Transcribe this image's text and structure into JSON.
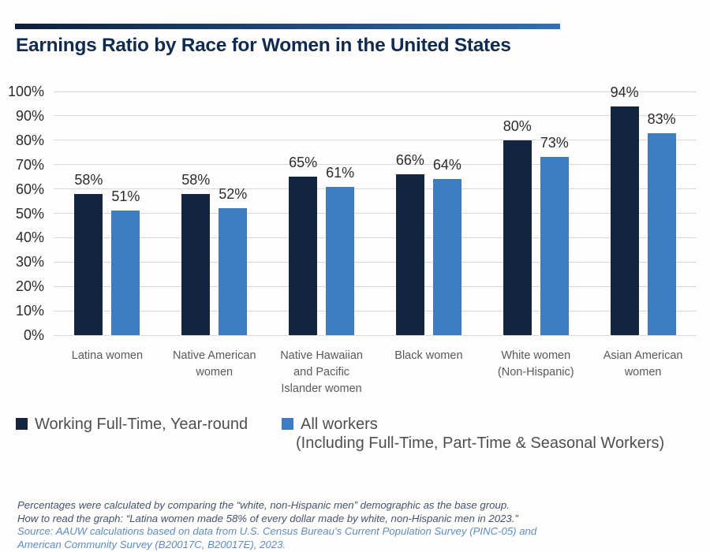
{
  "header": {
    "title": "Earnings Ratio by Race for Women in the United States",
    "title_color": "#0f2c50",
    "accent_gradient_start": "#0d1f3a",
    "accent_gradient_end": "#2f71b6"
  },
  "chart_data": {
    "type": "bar",
    "title": "Earnings Ratio by Race for Women in the United States",
    "categories": [
      "Latina women",
      "Native American women",
      "Native Hawaiian and Pacific Islander women",
      "Black women",
      "White women (Non-Hispanic)",
      "Asian American women"
    ],
    "category_lines": [
      [
        "Latina women"
      ],
      [
        "Native American",
        "women"
      ],
      [
        "Native Hawaiian",
        "and Pacific",
        "Islander women"
      ],
      [
        "Black women"
      ],
      [
        "White women",
        "(Non-Hispanic)"
      ],
      [
        "Asian American",
        "women"
      ]
    ],
    "series": [
      {
        "name": "Working Full-Time, Year-round",
        "color": "#15253f",
        "values": [
          58,
          58,
          65,
          66,
          80,
          94
        ]
      },
      {
        "name": "All workers (Including Full-Time, Part-Time & Seasonal Workers)",
        "color": "#3c7ec1",
        "values": [
          51,
          52,
          61,
          64,
          73,
          83
        ]
      }
    ],
    "value_suffix": "%",
    "y_ticks": [
      "100%",
      "90%",
      "80%",
      "70%",
      "60%",
      "50%",
      "40%",
      "30%",
      "20%",
      "10%",
      "0%"
    ],
    "ylim": [
      0,
      100
    ],
    "grid": true,
    "gridline_color": "#d8d8d8",
    "legend_position": "bottom"
  },
  "legend": {
    "items": [
      {
        "label": "Working Full-Time, Year-round",
        "color": "#15253f"
      },
      {
        "label": "All workers",
        "sublabel": "(Including Full-Time, Part-Time & Seasonal Workers)",
        "color": "#3c7ec1"
      }
    ]
  },
  "footer": {
    "note_color": "#42536f",
    "source_color": "#5b8cc8",
    "note_lines": [
      "Percentages were calculated by comparing the “white, non-Hispanic men” demographic as the base group.",
      "How to read the graph: “Latina women made 58% of every dollar made by white, non-Hispanic men in 2023.”"
    ],
    "source_lines": [
      "Source: AAUW calculations based on data from U.S. Census Bureau’s Current Population Survey (PINC-05) and",
      "American Community Survey (B20017C, B20017E), 2023."
    ]
  }
}
